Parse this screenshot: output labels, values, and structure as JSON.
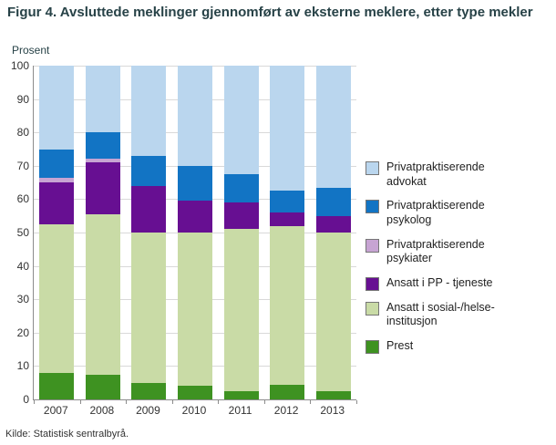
{
  "title": "Figur 4. Avsluttede meklinger gjennomført av eksterne meklere, etter type mekler",
  "source": "Kilde: Statistisk sentralbyrå.",
  "chart_data": {
    "type": "bar",
    "stacked": true,
    "title": "Figur 4. Avsluttede meklinger gjennomført av eksterne meklere, etter type mekler",
    "xlabel": "",
    "ylabel": "Prosent",
    "ylim": [
      0,
      100
    ],
    "ytick_step": 10,
    "grid": true,
    "legend_position": "right",
    "categories": [
      "2007",
      "2008",
      "2009",
      "2010",
      "2011",
      "2012",
      "2013"
    ],
    "series": [
      {
        "name": "Prest",
        "color": "#3e9221",
        "values": [
          8,
          7.5,
          5,
          4,
          2.5,
          4.5,
          2.5
        ]
      },
      {
        "name": "Ansatt i sosial-/helse-institusjon",
        "color": "#c9dba6",
        "values": [
          44.5,
          48,
          45,
          46,
          48.5,
          47.5,
          47.5
        ]
      },
      {
        "name": "Ansatt i PP - tjeneste",
        "color": "#670f92",
        "values": [
          12.5,
          15.5,
          14,
          9.5,
          8,
          4,
          5
        ]
      },
      {
        "name": "Privatpraktiserende psykiater",
        "color": "#c7a4d3",
        "values": [
          1.5,
          1,
          0,
          0,
          0,
          0,
          0
        ]
      },
      {
        "name": "Privatpraktiserende psykolog",
        "color": "#1274c4",
        "values": [
          8.5,
          8,
          9,
          10.5,
          8.5,
          6.5,
          8.5
        ]
      },
      {
        "name": "Privatpraktiserende advokat",
        "color": "#bad6ee",
        "values": [
          25,
          20,
          27,
          30,
          32.5,
          37.5,
          36.5
        ]
      }
    ]
  }
}
